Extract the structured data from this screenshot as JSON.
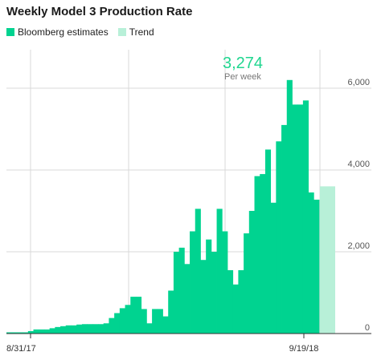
{
  "title": "Weekly Model 3 Production Rate",
  "legend": {
    "estimates": "Bloomberg estimates",
    "trend": "Trend"
  },
  "colors": {
    "estimates": "#00d390",
    "trend": "#b8f0d8",
    "grid": "#d9d9d9",
    "axis": "#333333",
    "tick_label": "#555555",
    "annotation": "#1fd68f"
  },
  "annotation": {
    "value": "3,274",
    "sub": "Per week"
  },
  "chart_data": {
    "type": "bar",
    "x_start_label": "8/31/17",
    "x_end_label": "9/19/18",
    "ylim": [
      0,
      6500
    ],
    "yticks": [
      {
        "value": 0,
        "label": "0"
      },
      {
        "value": 2000,
        "label": "2,000"
      },
      {
        "value": 4000,
        "label": "4,000"
      },
      {
        "value": 6000,
        "label": "6,000"
      }
    ],
    "series": [
      {
        "key": "estimates",
        "values": [
          30,
          30,
          30,
          30,
          60,
          100,
          100,
          100,
          130,
          160,
          180,
          200,
          200,
          220,
          230,
          230,
          230,
          230,
          250,
          380,
          500,
          620,
          700,
          900,
          900,
          600,
          250,
          600,
          600,
          420,
          1050,
          2000,
          2100,
          1700,
          2500,
          3050,
          1800,
          2300,
          2000,
          3050,
          2500,
          1550,
          1200,
          1550,
          2450,
          3000,
          3850,
          3900,
          4500,
          3200,
          4700,
          5100,
          6200,
          5600,
          5600,
          5700,
          3450,
          3274
        ]
      },
      {
        "key": "trend",
        "values": [
          3600
        ]
      }
    ]
  }
}
